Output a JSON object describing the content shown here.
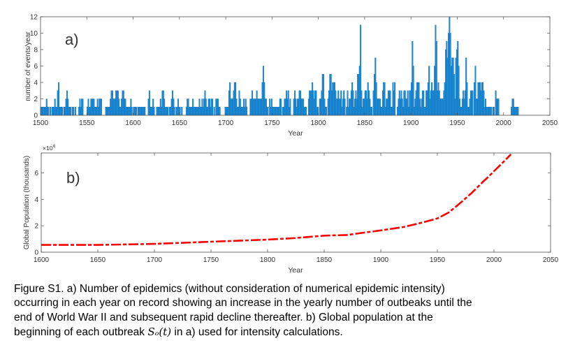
{
  "chart_data": [
    {
      "type": "bar",
      "panel_label": "a)",
      "xlabel": "Year",
      "ylabel": "number of events/year",
      "xlim": [
        1500,
        2050
      ],
      "ylim": [
        0,
        12
      ],
      "xticks": [
        "1500",
        "1550",
        "1600",
        "1650",
        "1700",
        "1750",
        "1800",
        "1850",
        "1900",
        "1950",
        "2000",
        "2050"
      ],
      "yticks": [
        "0",
        "2",
        "4",
        "6",
        "8",
        "10",
        "12"
      ],
      "bar_color": "#1f8dd6",
      "start_year": 1500,
      "values": [
        1,
        1,
        1,
        1,
        1,
        1,
        2,
        1,
        1,
        0,
        1,
        0,
        1,
        1,
        1,
        2,
        1,
        1,
        3,
        4,
        1,
        1,
        1,
        1,
        0,
        1,
        1,
        2,
        3,
        2,
        1,
        1,
        1,
        0,
        1,
        1,
        0,
        1,
        0,
        0,
        0,
        1,
        2,
        1,
        2,
        2,
        0,
        0,
        0,
        0,
        1,
        2,
        1,
        1,
        2,
        2,
        2,
        2,
        1,
        1,
        1,
        2,
        1,
        2,
        2,
        2,
        0,
        0,
        0,
        0,
        1,
        1,
        1,
        1,
        1,
        2,
        3,
        3,
        2,
        2,
        2,
        3,
        3,
        3,
        2,
        1,
        1,
        2,
        3,
        3,
        2,
        2,
        1,
        1,
        1,
        1,
        1,
        2,
        1,
        0,
        1,
        1,
        1,
        1,
        0,
        1,
        1,
        1,
        1,
        1,
        1,
        1,
        1,
        0,
        0,
        0,
        2,
        3,
        1,
        1,
        1,
        2,
        1,
        0,
        0,
        1,
        1,
        1,
        1,
        2,
        1,
        3,
        3,
        2,
        1,
        1,
        1,
        1,
        0,
        1,
        1,
        2,
        3,
        2,
        1,
        0,
        1,
        1,
        2,
        1,
        1,
        0,
        1,
        0,
        0,
        0,
        0,
        1,
        2,
        2,
        1,
        1,
        1,
        1,
        2,
        1,
        1,
        1,
        1,
        1,
        1,
        2,
        1,
        1,
        2,
        1,
        2,
        3,
        2,
        1,
        1,
        2,
        2,
        1,
        2,
        2,
        0,
        1,
        0,
        2,
        2,
        2,
        1,
        1,
        0,
        0,
        0,
        0,
        0,
        1,
        1,
        1,
        1,
        3,
        4,
        2,
        2,
        2,
        3,
        4,
        4,
        2,
        1,
        1,
        3,
        2,
        1,
        1,
        1,
        2,
        1,
        2,
        1,
        0,
        0,
        0,
        2,
        2,
        3,
        2,
        2,
        2,
        2,
        3,
        2,
        2,
        2,
        2,
        2,
        4,
        6,
        4,
        2,
        2,
        1,
        1,
        0,
        2,
        1,
        2,
        1,
        1,
        1,
        1,
        1,
        1,
        1,
        1,
        2,
        2,
        0,
        1,
        1,
        2,
        2,
        3,
        2,
        3,
        1,
        2,
        0,
        0,
        0,
        2,
        3,
        2,
        1,
        2,
        2,
        3,
        3,
        2,
        2,
        2,
        1,
        1,
        1,
        0,
        0,
        2,
        3,
        3,
        3,
        4,
        3,
        2,
        3,
        3,
        1,
        1,
        0,
        2,
        2,
        3,
        5,
        5,
        2,
        1,
        1,
        0,
        2,
        3,
        5,
        5,
        3,
        4,
        4,
        4,
        3,
        2,
        2,
        3,
        2,
        2,
        3,
        1,
        2,
        3,
        2,
        0,
        1,
        3,
        1,
        2,
        2,
        3,
        4,
        3,
        1,
        2,
        3,
        2,
        5,
        5,
        6,
        11,
        3,
        1,
        2,
        2,
        3,
        3,
        2,
        4,
        3,
        2,
        1,
        1,
        0,
        3,
        5,
        7,
        4,
        2,
        2,
        2,
        2,
        1,
        1,
        3,
        4,
        4,
        1,
        2,
        2,
        3,
        3,
        3,
        1,
        1,
        4,
        3,
        4,
        0,
        0,
        1,
        2,
        3,
        2,
        3,
        2,
        1,
        3,
        3,
        2,
        2,
        3,
        1,
        3,
        3,
        4,
        9,
        6,
        1,
        2,
        3,
        4,
        4,
        4,
        2,
        1,
        2,
        3,
        3,
        1,
        1,
        3,
        3,
        4,
        6,
        2,
        3,
        4,
        3,
        3,
        6,
        11,
        9,
        3,
        4,
        3,
        2,
        2,
        2,
        2,
        3,
        4,
        8,
        9,
        7,
        10,
        12,
        10,
        6,
        7,
        7,
        5,
        2,
        7,
        8,
        9,
        6,
        2,
        1,
        1,
        2,
        3,
        2,
        3,
        7,
        4,
        1,
        1,
        2,
        3,
        3,
        3,
        0,
        4,
        6,
        2,
        2,
        4,
        4,
        4,
        3,
        4,
        4,
        3,
        1,
        2,
        1,
        1,
        1,
        1,
        1,
        1,
        0,
        1,
        1,
        0,
        3,
        2,
        2,
        2,
        0,
        0,
        0,
        0,
        0,
        0,
        0,
        0,
        0,
        0,
        0,
        0,
        0,
        1,
        2,
        2,
        1,
        1,
        1,
        1,
        1
      ]
    },
    {
      "type": "line",
      "panel_label": "b)",
      "xlabel": "Year",
      "ylabel": "Global Population (thousands)",
      "y_multiplier": "×10",
      "y_exponent": "6",
      "xlim": [
        1600,
        2050
      ],
      "ylim": [
        0,
        7.5
      ],
      "xticks": [
        "1600",
        "1650",
        "1700",
        "1750",
        "1800",
        "1850",
        "1900",
        "1950",
        "2000",
        "2050"
      ],
      "yticks": [
        "0",
        "2",
        "4",
        "6"
      ],
      "line_color": "#ff0000",
      "line_style": "dashed",
      "x": [
        1600,
        1650,
        1700,
        1750,
        1800,
        1825,
        1850,
        1870,
        1880,
        1900,
        1920,
        1935,
        1950,
        1960,
        1970,
        1980,
        1990,
        1995,
        2008,
        2015
      ],
      "y": [
        0.55,
        0.55,
        0.63,
        0.79,
        0.95,
        1.07,
        1.25,
        1.3,
        1.42,
        1.65,
        1.9,
        2.2,
        2.55,
        3.0,
        3.7,
        4.45,
        5.3,
        5.7,
        6.8,
        7.4
      ]
    }
  ],
  "caption": {
    "line1": "Figure S1. a) Number of epidemics (without consideration of numerical epidemic intensity)",
    "line2": "occurring in each year on record showing an increase in the yearly number of outbeaks until the",
    "line3": "end of World War II and subsequent rapid decline thereafter. b) Global population at the",
    "line4_pre": "beginning of each outbreak ",
    "line4_math": "Sₒ(t)",
    "line4_post": " in a) used for intensity calculations."
  }
}
